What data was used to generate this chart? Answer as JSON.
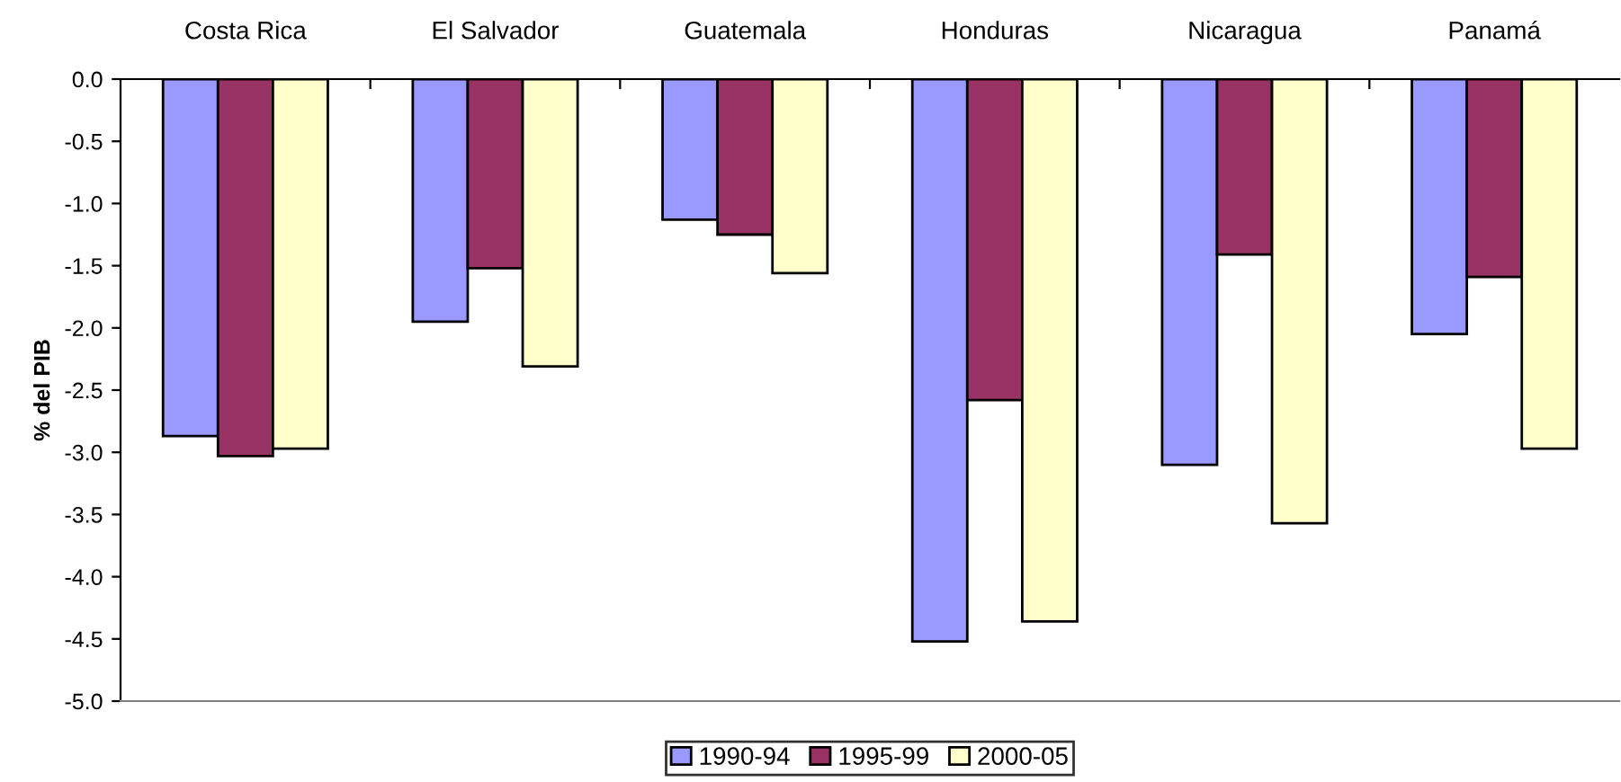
{
  "chart_data": {
    "type": "bar",
    "ylabel": "% del PIB",
    "categories": [
      "Costa Rica",
      "El Salvador",
      "Guatemala",
      "Honduras",
      "Nicaragua",
      "Panamá"
    ],
    "series": [
      {
        "name": "1990-94",
        "color": "#9999ff",
        "values": [
          -2.87,
          -1.95,
          -1.13,
          -4.52,
          -3.1,
          -2.05
        ]
      },
      {
        "name": "1995-99",
        "color": "#993366",
        "values": [
          -3.03,
          -1.52,
          -1.25,
          -2.58,
          -1.41,
          -1.59
        ]
      },
      {
        "name": "2000-05",
        "color": "#ffffcc",
        "values": [
          -2.97,
          -2.31,
          -1.56,
          -4.36,
          -3.57,
          -2.97
        ]
      }
    ],
    "ylim": [
      -5.0,
      0.0
    ],
    "yticks": [
      {
        "value": -5.0,
        "label": "-5.0"
      },
      {
        "value": -4.5,
        "label": "-4.5"
      },
      {
        "value": -4.0,
        "label": "-4.0"
      },
      {
        "value": -3.5,
        "label": "-3.5"
      },
      {
        "value": -3.0,
        "label": "-3.0"
      },
      {
        "value": -2.5,
        "label": "-2.5"
      },
      {
        "value": -2.0,
        "label": "-2.0"
      },
      {
        "value": -1.5,
        "label": "-1.5"
      },
      {
        "value": -1.0,
        "label": "-1.0"
      },
      {
        "value": -0.5,
        "label": "-0.5"
      },
      {
        "value": 0.0,
        "label": "0.0"
      }
    ],
    "grid": false,
    "legend": "bottom"
  }
}
